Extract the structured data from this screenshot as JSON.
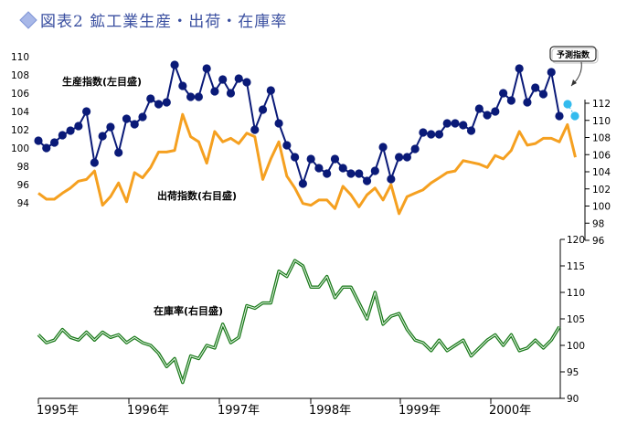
{
  "title": "図表2 鉱工業生産・出荷・在庫率",
  "chart_data": [
    {
      "type": "line",
      "x_labels": [
        "1995年",
        "1996年",
        "1997年",
        "1998年",
        "1999年",
        "2000年"
      ],
      "left_axis": {
        "ylim": [
          94,
          110
        ],
        "ticks": [
          94,
          96,
          98,
          100,
          102,
          104,
          106,
          108,
          110
        ]
      },
      "right_axis": {
        "ylim": [
          96,
          112
        ],
        "ticks": [
          96,
          98,
          100,
          102,
          104,
          106,
          108,
          110,
          112
        ]
      },
      "series": [
        {
          "name": "生産指数(左目盛)",
          "axis": "left",
          "color": "#0a1a78",
          "values": [
            100.8,
            100.0,
            100.6,
            101.4,
            101.9,
            102.4,
            104.0,
            98.4,
            101.3,
            102.3,
            99.5,
            103.2,
            102.6,
            103.4,
            105.4,
            104.8,
            105.0,
            109.1,
            106.8,
            105.6,
            105.6,
            108.7,
            106.2,
            107.5,
            106.0,
            107.6,
            107.2,
            102.0,
            104.2,
            106.3,
            102.7,
            100.3,
            99.0,
            96.1,
            98.8,
            97.8,
            97.2,
            98.8,
            97.8,
            97.2,
            97.2,
            96.4,
            97.5,
            100.1,
            96.6,
            99.0,
            99.0,
            99.9,
            101.7,
            101.5,
            101.5,
            102.7,
            102.7,
            102.5,
            101.9,
            104.3,
            103.6,
            104.0,
            106.0,
            105.2,
            108.7,
            105.0,
            106.6,
            105.9,
            108.3,
            103.5
          ]
        },
        {
          "name": "出荷指数(右目盛)",
          "axis": "right",
          "color": "#f5a020",
          "values": [
            101.5,
            100.8,
            100.8,
            101.5,
            102.1,
            102.9,
            103.1,
            104.1,
            100.1,
            101.1,
            102.7,
            100.5,
            103.9,
            103.3,
            104.5,
            106.3,
            106.3,
            106.5,
            110.7,
            108.1,
            107.5,
            105.0,
            108.7,
            107.5,
            107.9,
            107.3,
            108.5,
            108.1,
            103.1,
            105.5,
            107.5,
            103.5,
            102.1,
            100.3,
            100.1,
            100.7,
            100.7,
            99.7,
            102.3,
            101.3,
            99.9,
            101.3,
            102.1,
            100.7,
            102.5,
            99.1,
            101.1,
            101.5,
            101.9,
            102.7,
            103.3,
            103.9,
            104.1,
            105.3,
            105.1,
            104.9,
            104.5,
            105.9,
            105.5,
            106.5,
            108.7,
            107.1,
            107.3,
            107.9,
            107.9,
            107.5,
            109.5,
            105.7
          ]
        },
        {
          "name": "在庫率(右目盛)",
          "axis": "right2",
          "color": "#1a7a1a",
          "ylim": [
            90,
            120
          ],
          "ticks": [
            90,
            95,
            100,
            105,
            110,
            115,
            120
          ],
          "values": [
            102.0,
            100.5,
            101.0,
            103.0,
            101.5,
            101.0,
            102.5,
            101.0,
            102.5,
            101.5,
            102.0,
            100.5,
            101.5,
            100.5,
            100.0,
            98.5,
            96.0,
            97.5,
            93.0,
            98.0,
            97.5,
            100.0,
            99.5,
            104.0,
            100.5,
            101.5,
            107.5,
            107.0,
            108.0,
            108.0,
            114.0,
            113.0,
            116.0,
            115.0,
            111.0,
            111.0,
            113.0,
            109.0,
            111.0,
            111.0,
            108.0,
            105.0,
            110.0,
            104.0,
            105.5,
            106.0,
            103.0,
            101.0,
            100.5,
            99.0,
            101.0,
            99.0,
            100.0,
            101.0,
            98.0,
            99.5,
            101.0,
            102.0,
            100.0,
            102.0,
            99.0,
            99.5,
            101.0,
            99.5,
            101.0,
            103.5
          ]
        }
      ],
      "forecast": {
        "label": "予測指数",
        "color": "#33bbee",
        "values": [
          104.8,
          103.5
        ]
      }
    }
  ]
}
